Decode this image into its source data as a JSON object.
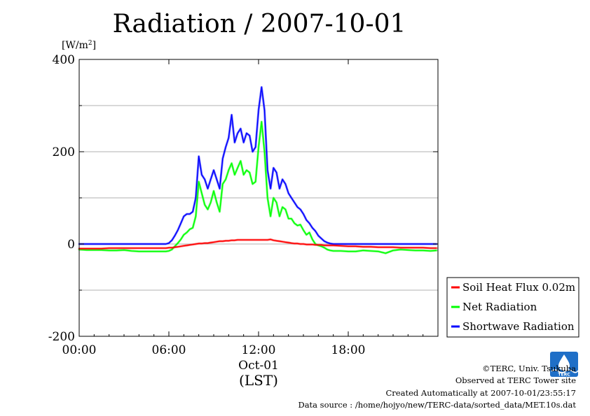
{
  "chart_data": {
    "type": "line",
    "title": "Radiation / 2007-10-01",
    "ylabel": "[W/m2]",
    "ylabel_base": "[W/m",
    "ylabel_sup": "2",
    "ylabel_close": "]",
    "xlabel": "(LST)",
    "date_label": "Oct-01",
    "xlim": [
      0,
      24
    ],
    "ylim": [
      -200,
      400
    ],
    "x_ticks": [
      {
        "value": 0,
        "label": "00:00"
      },
      {
        "value": 6,
        "label": "06:00"
      },
      {
        "value": 12,
        "label": "12:00"
      },
      {
        "value": 18,
        "label": "18:00"
      }
    ],
    "y_ticks": [
      {
        "value": -200,
        "label": "-200"
      },
      {
        "value": 0,
        "label": "0"
      },
      {
        "value": 200,
        "label": "200"
      },
      {
        "value": 400,
        "label": "400"
      }
    ],
    "gridlines_y": [
      -100,
      0,
      100,
      200,
      300
    ],
    "grid": true,
    "legend_position": "outside-right-bottom",
    "x": [
      0,
      0.5,
      1,
      1.5,
      2,
      2.5,
      3,
      3.5,
      4,
      4.5,
      5,
      5.5,
      5.8,
      6.0,
      6.2,
      6.4,
      6.6,
      6.8,
      7.0,
      7.2,
      7.4,
      7.6,
      7.8,
      8.0,
      8.2,
      8.4,
      8.6,
      8.8,
      9.0,
      9.2,
      9.4,
      9.6,
      9.8,
      10.0,
      10.2,
      10.4,
      10.6,
      10.8,
      11.0,
      11.2,
      11.4,
      11.6,
      11.8,
      12.0,
      12.2,
      12.4,
      12.6,
      12.8,
      13.0,
      13.2,
      13.4,
      13.6,
      13.8,
      14.0,
      14.2,
      14.4,
      14.6,
      14.8,
      15.0,
      15.2,
      15.4,
      15.6,
      15.8,
      16.0,
      16.2,
      16.4,
      16.6,
      16.8,
      17.0,
      17.5,
      18,
      18.5,
      19,
      19.5,
      20,
      20.5,
      21,
      21.5,
      22,
      22.5,
      23,
      23.5,
      23.9
    ],
    "series": [
      {
        "name": "Soil Heat Flux 0.02m",
        "color": "#ff0000",
        "values": [
          -10,
          -10,
          -10,
          -10,
          -9,
          -9,
          -9,
          -9,
          -9,
          -9,
          -9,
          -9,
          -9,
          -8,
          -8,
          -7,
          -6,
          -5,
          -4,
          -3,
          -2,
          -1,
          0,
          1,
          1,
          2,
          2,
          3,
          4,
          5,
          6,
          6,
          7,
          7,
          8,
          8,
          9,
          9,
          9,
          9,
          9,
          9,
          9,
          9,
          9,
          9,
          9,
          10,
          8,
          7,
          6,
          5,
          4,
          3,
          2,
          1,
          1,
          0,
          0,
          -1,
          -1,
          -1,
          -2,
          -2,
          -2,
          -3,
          -3,
          -3,
          -3,
          -4,
          -5,
          -5,
          -6,
          -6,
          -7,
          -7,
          -7,
          -8,
          -8,
          -8,
          -8,
          -9,
          -9
        ]
      },
      {
        "name": "Net Radiation",
        "color": "#00ff00",
        "values": [
          -12,
          -13,
          -13,
          -13,
          -14,
          -14,
          -13,
          -15,
          -16,
          -16,
          -16,
          -16,
          -16,
          -15,
          -12,
          -5,
          2,
          10,
          20,
          25,
          32,
          35,
          60,
          135,
          110,
          85,
          75,
          90,
          115,
          90,
          70,
          130,
          140,
          160,
          175,
          150,
          165,
          180,
          150,
          160,
          155,
          130,
          135,
          210,
          265,
          200,
          100,
          60,
          100,
          90,
          60,
          80,
          75,
          55,
          55,
          45,
          40,
          42,
          30,
          20,
          25,
          10,
          0,
          -3,
          -5,
          -8,
          -12,
          -14,
          -15,
          -15,
          -16,
          -16,
          -14,
          -15,
          -16,
          -20,
          -14,
          -12,
          -13,
          -14,
          -14,
          -15,
          -14
        ]
      },
      {
        "name": "Shortwave Radiation",
        "color": "#0000ff",
        "values": [
          0,
          0,
          0,
          0,
          0,
          0,
          0,
          0,
          0,
          0,
          0,
          0,
          0,
          2,
          8,
          18,
          30,
          45,
          60,
          65,
          65,
          70,
          100,
          190,
          150,
          140,
          120,
          140,
          160,
          140,
          120,
          185,
          210,
          230,
          280,
          220,
          240,
          250,
          220,
          240,
          235,
          200,
          210,
          290,
          340,
          290,
          160,
          120,
          165,
          155,
          120,
          140,
          130,
          110,
          100,
          90,
          80,
          75,
          65,
          52,
          45,
          35,
          28,
          18,
          12,
          6,
          3,
          1,
          0,
          0,
          0,
          0,
          0,
          0,
          0,
          0,
          0,
          0,
          0,
          0,
          0,
          0,
          0
        ]
      }
    ]
  },
  "footer": {
    "copyright": "©TERC, Univ. Tsukuba",
    "observed": "Observed at TERC Tower site",
    "created": "Created Automatically at 2007-10-01/23:55:17",
    "source": "Data source : /home/hojyo/new/TERC-data/sorted_data/MET.10s.dat",
    "logo_text": "TERC"
  },
  "colors": {
    "grid": "#999999",
    "axis": "#000000",
    "logo_blue": "#1f6fc7"
  }
}
